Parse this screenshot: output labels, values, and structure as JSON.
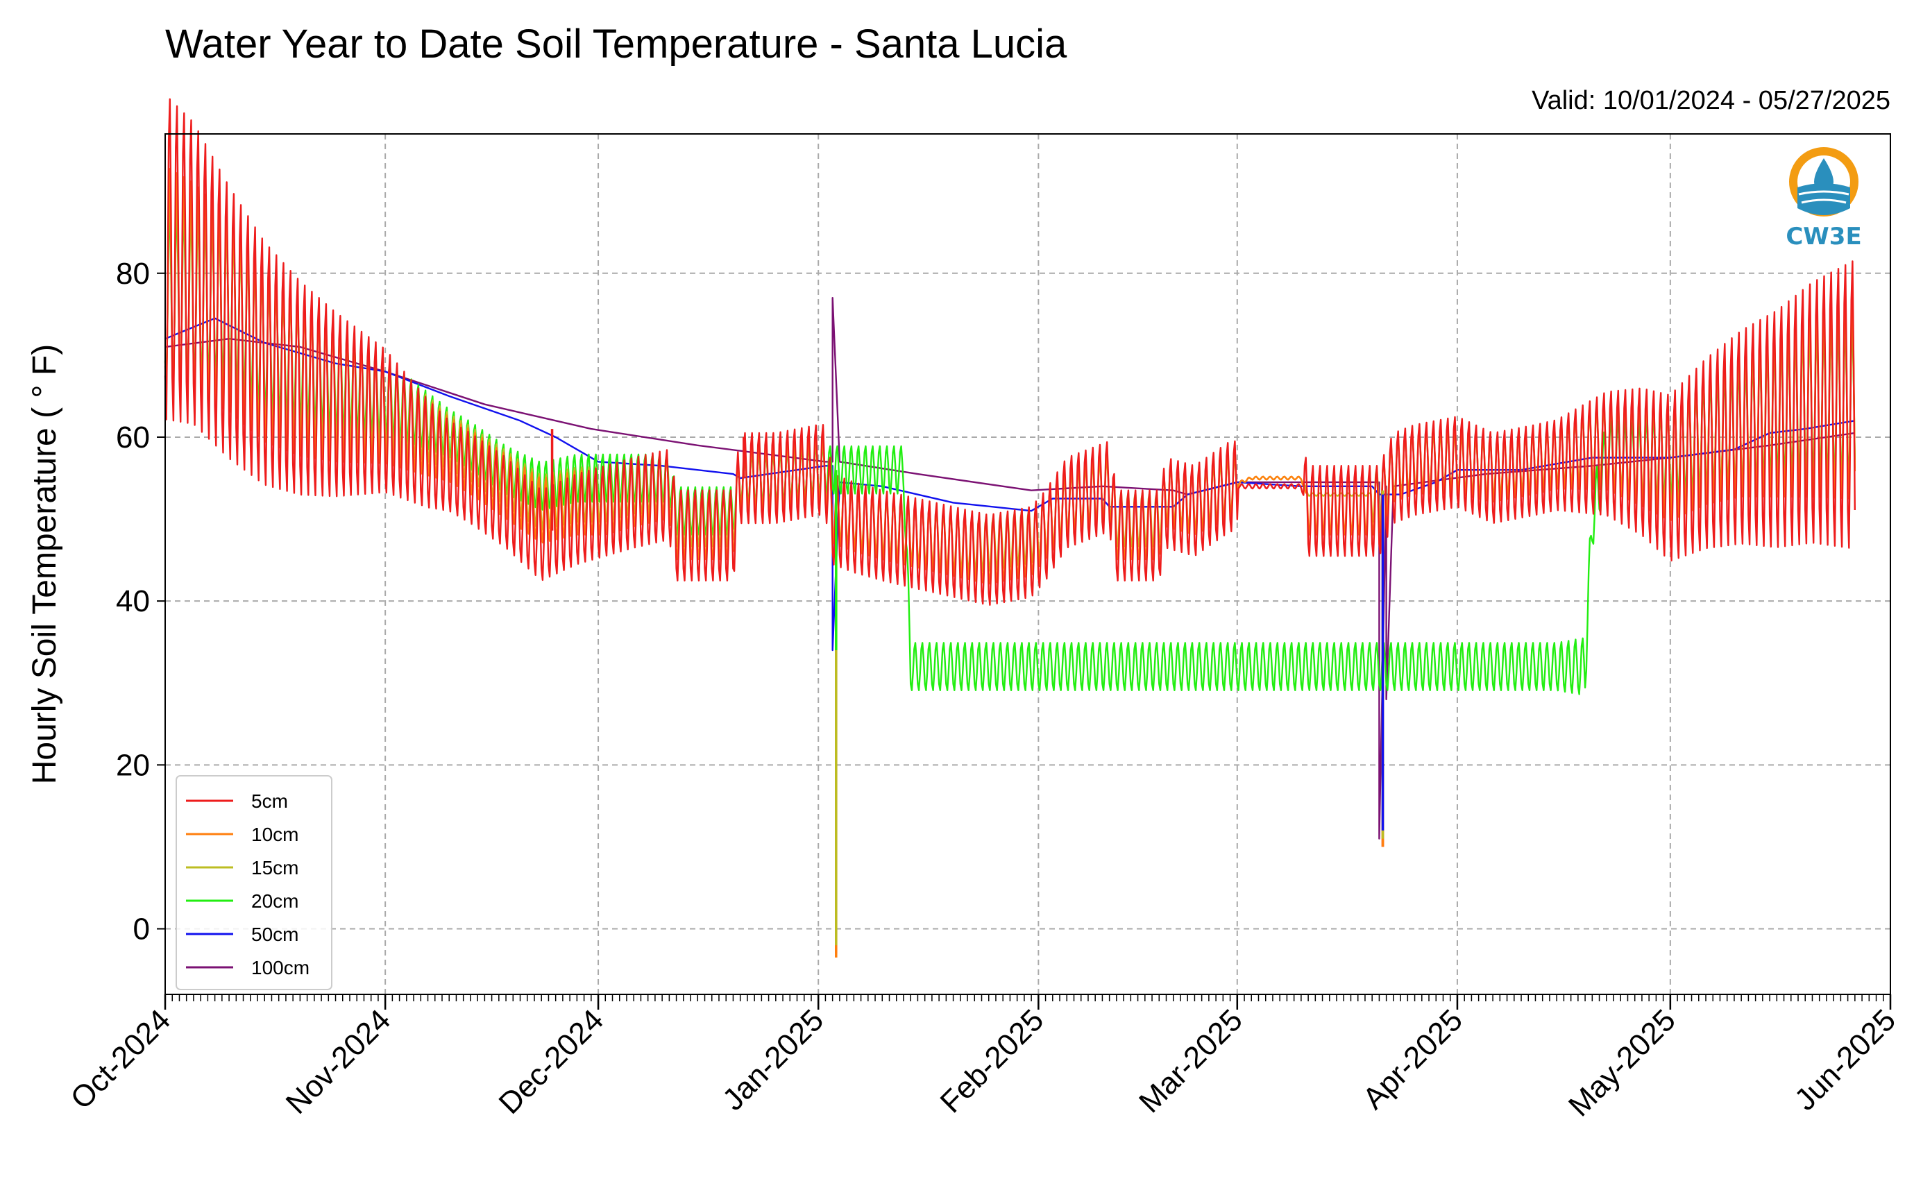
{
  "chart_data": {
    "type": "line",
    "title": "Water Year to Date Soil Temperature - Santa Lucia",
    "subtitle": "Valid: 10/01/2024 - 05/27/2025",
    "ylabel": "Hourly Soil Temperature ( ° F)",
    "xlabel": "",
    "x_range": [
      "2024-10-01",
      "2025-06-01"
    ],
    "ylim": [
      -8,
      97
    ],
    "y_ticks": [
      0,
      20,
      40,
      60,
      80
    ],
    "x_ticks": [
      {
        "date": "2024-10-01",
        "label": "Oct-2024"
      },
      {
        "date": "2024-11-01",
        "label": "Nov-2024"
      },
      {
        "date": "2024-12-01",
        "label": "Dec-2024"
      },
      {
        "date": "2025-01-01",
        "label": "Jan-2025"
      },
      {
        "date": "2025-02-01",
        "label": "Feb-2025"
      },
      {
        "date": "2025-03-01",
        "label": "Mar-2025"
      },
      {
        "date": "2025-04-01",
        "label": "Apr-2025"
      },
      {
        "date": "2025-05-01",
        "label": "May-2025"
      },
      {
        "date": "2025-06-01",
        "label": "Jun-2025"
      }
    ],
    "grid": true,
    "legend_position": "bottom-left",
    "series": [
      {
        "name": "5cm",
        "color": "#ee1c1c",
        "amp": 1.9,
        "dates": [
          "2024-10-01",
          "2024-10-05",
          "2024-10-10",
          "2024-10-15",
          "2024-10-20",
          "2024-10-25",
          "2024-11-01",
          "2024-11-07",
          "2024-11-13",
          "2024-11-18",
          "2024-11-23",
          "2024-11-28",
          "2024-12-02",
          "2024-12-06",
          "2024-12-11",
          "2024-12-12",
          "2024-12-20",
          "2024-12-21",
          "2024-12-26",
          "2025-01-01",
          "2025-01-02",
          "2025-01-03",
          "2025-01-06",
          "2025-01-10",
          "2025-01-15",
          "2025-01-20",
          "2025-01-25",
          "2025-01-31",
          "2025-02-02",
          "2025-02-05",
          "2025-02-11",
          "2025-02-12",
          "2025-02-13",
          "2025-02-18",
          "2025-02-19",
          "2025-02-23",
          "2025-02-28",
          "2025-03-03",
          "2025-03-10",
          "2025-03-11",
          "2025-03-20",
          "2025-03-21",
          "2025-03-22",
          "2025-03-23",
          "2025-03-26",
          "2025-04-01",
          "2025-04-06",
          "2025-04-12",
          "2025-04-17",
          "2025-04-22",
          "2025-04-27",
          "2025-05-01",
          "2025-05-06",
          "2025-05-11",
          "2025-05-16",
          "2025-05-21",
          "2025-05-27"
        ],
        "values": [
          82,
          80,
          74,
          69,
          66,
          64,
          62,
          58,
          55,
          52,
          48,
          50,
          51,
          52,
          53,
          48,
          48,
          55,
          55,
          56,
          56,
          50,
          49,
          48,
          47,
          46,
          45,
          46,
          48,
          52,
          54,
          48,
          48,
          48,
          52,
          51,
          54,
          54,
          54,
          51,
          51,
          51,
          53,
          55,
          56,
          57,
          55,
          56,
          57,
          58,
          57,
          55,
          58,
          60,
          61,
          63,
          64
        ]
      },
      {
        "name": "10cm",
        "color": "#ff7f0e",
        "amp": 1.35,
        "dates": [
          "2024-10-01",
          "2024-10-05",
          "2024-10-10",
          "2024-10-15",
          "2024-10-20",
          "2024-10-25",
          "2024-11-01",
          "2024-11-07",
          "2024-11-13",
          "2024-11-18",
          "2024-11-23",
          "2024-11-28",
          "2024-12-02",
          "2024-12-06",
          "2024-12-11",
          "2024-12-12",
          "2024-12-20",
          "2024-12-21",
          "2024-12-26",
          "2025-01-01",
          "2025-01-02",
          "2025-01-03",
          "2025-01-06",
          "2025-01-10",
          "2025-01-15",
          "2025-01-20",
          "2025-01-25",
          "2025-01-31",
          "2025-02-02",
          "2025-02-05",
          "2025-02-11",
          "2025-02-12",
          "2025-02-13",
          "2025-02-18",
          "2025-02-19",
          "2025-02-23",
          "2025-02-28",
          "2025-03-03",
          "2025-03-10",
          "2025-03-11",
          "2025-03-20",
          "2025-03-21",
          "2025-03-22",
          "2025-03-23",
          "2025-03-26",
          "2025-04-01",
          "2025-04-06",
          "2025-04-12",
          "2025-04-17",
          "2025-04-22",
          "2025-04-27",
          "2025-05-01",
          "2025-05-06",
          "2025-05-11",
          "2025-05-16",
          "2025-05-21",
          "2025-05-27"
        ],
        "values": [
          79,
          78,
          75,
          70,
          67,
          65,
          63,
          60,
          57,
          54,
          51,
          52,
          52,
          53,
          54,
          49,
          49,
          55,
          55,
          56,
          56,
          51,
          50,
          49,
          48,
          47,
          46,
          47,
          49,
          52,
          54,
          49,
          49,
          49,
          53,
          52,
          54,
          55,
          55,
          52,
          52,
          52,
          54,
          56,
          57,
          57,
          56,
          57,
          58,
          59,
          58,
          57,
          60,
          62,
          63,
          64,
          65
        ]
      },
      {
        "name": "15cm",
        "color": "#bcbd22",
        "amp": 1.15,
        "dates": [
          "2024-10-01",
          "2024-10-05",
          "2024-10-10",
          "2024-10-15",
          "2024-10-20",
          "2024-10-25",
          "2024-11-01",
          "2024-11-07",
          "2024-11-13",
          "2024-11-18",
          "2024-11-23",
          "2024-11-28",
          "2024-12-02",
          "2024-12-06",
          "2024-12-11",
          "2024-12-12",
          "2024-12-20",
          "2024-12-21",
          "2024-12-26",
          "2025-01-01",
          "2025-01-02",
          "2025-01-03",
          "2025-01-06",
          "2025-01-10",
          "2025-01-15",
          "2025-01-20",
          "2025-01-25",
          "2025-01-31",
          "2025-02-02",
          "2025-02-05",
          "2025-02-11",
          "2025-02-12",
          "2025-02-13",
          "2025-02-18",
          "2025-02-19",
          "2025-02-23",
          "2025-02-28",
          "2025-03-03",
          "2025-03-10",
          "2025-03-11",
          "2025-03-20",
          "2025-03-21",
          "2025-03-22",
          "2025-03-23",
          "2025-03-26",
          "2025-04-01",
          "2025-04-06",
          "2025-04-12",
          "2025-04-17",
          "2025-04-22",
          "2025-04-27",
          "2025-05-01",
          "2025-05-06",
          "2025-05-11",
          "2025-05-16",
          "2025-05-21",
          "2025-05-27"
        ],
        "values": [
          78,
          77,
          75,
          70,
          68,
          66,
          64,
          61,
          58,
          55,
          52,
          53,
          53,
          54,
          54,
          50,
          50,
          55,
          55,
          56,
          56,
          51,
          50,
          49,
          48,
          47,
          47,
          48,
          49,
          52,
          54,
          50,
          50,
          50,
          53,
          52,
          54,
          55,
          55,
          53,
          53,
          53,
          54,
          56,
          57,
          57,
          56,
          57,
          58,
          59,
          58,
          57,
          60,
          61,
          62,
          63,
          64
        ]
      },
      {
        "name": "20cm",
        "color": "#22ee11",
        "amp": 1.0,
        "dates": [
          "2024-10-01",
          "2024-10-05",
          "2024-10-10",
          "2024-10-15",
          "2024-10-20",
          "2024-10-25",
          "2024-11-01",
          "2024-11-07",
          "2024-11-13",
          "2024-11-18",
          "2024-11-23",
          "2024-11-28",
          "2024-12-02",
          "2024-12-06",
          "2024-12-11",
          "2024-12-12",
          "2024-12-20",
          "2024-12-21",
          "2024-12-26",
          "2025-01-01",
          "2025-01-13",
          "2025-01-14",
          "2025-04-19",
          "2025-04-20",
          "2025-04-22",
          "2025-04-27",
          "2025-05-01",
          "2025-05-06",
          "2025-05-11",
          "2025-05-16",
          "2025-05-21",
          "2025-05-27"
        ],
        "values": [
          77,
          77,
          76,
          71,
          69,
          67,
          65,
          62,
          59,
          56,
          54,
          55,
          55,
          55,
          55,
          51,
          51,
          55,
          55,
          56,
          56,
          32,
          32,
          50,
          58,
          57,
          58,
          60,
          61,
          63,
          64,
          64
        ]
      },
      {
        "name": "50cm",
        "color": "#1111ee",
        "amp": 0,
        "dates": [
          "2024-10-01",
          "2024-10-08",
          "2024-10-15",
          "2024-10-25",
          "2024-11-01",
          "2024-11-10",
          "2024-11-20",
          "2024-11-25",
          "2024-12-01",
          "2024-12-10",
          "2024-12-20",
          "2024-12-21",
          "2024-12-25",
          "2025-01-02",
          "2025-01-03",
          "2025-01-03",
          "2025-01-04",
          "2025-01-10",
          "2025-01-20",
          "2025-01-31",
          "2025-02-03",
          "2025-02-10",
          "2025-02-11",
          "2025-02-20",
          "2025-02-22",
          "2025-03-01",
          "2025-03-10",
          "2025-03-20",
          "2025-03-21",
          "2025-03-24",
          "2025-03-29",
          "2025-04-01",
          "2025-04-10",
          "2025-04-20",
          "2025-05-01",
          "2025-05-10",
          "2025-05-15",
          "2025-05-20",
          "2025-05-27"
        ],
        "values": [
          72,
          74.5,
          71.5,
          69,
          68,
          65,
          62,
          60,
          57,
          56.5,
          55.5,
          55,
          55.5,
          56.5,
          56.5,
          34,
          54.5,
          54,
          52,
          51,
          52.5,
          52.5,
          51.5,
          51.5,
          53,
          54.5,
          54,
          54,
          53,
          53,
          54.5,
          56,
          56,
          57.5,
          57.5,
          58.5,
          60.5,
          61,
          62
        ]
      },
      {
        "name": "100cm",
        "color": "#7b1173",
        "amp": 0,
        "dates": [
          "2024-10-01",
          "2024-10-10",
          "2024-10-20",
          "2024-11-01",
          "2024-11-15",
          "2024-11-30",
          "2024-12-15",
          "2025-01-02",
          "2025-01-03",
          "2025-01-03",
          "2025-01-04",
          "2025-01-15",
          "2025-01-31",
          "2025-02-10",
          "2025-02-20",
          "2025-02-22",
          "2025-03-01",
          "2025-03-10",
          "2025-03-20",
          "2025-03-21",
          "2025-03-21",
          "2025-03-22",
          "2025-03-22",
          "2025-03-23",
          "2025-04-05",
          "2025-04-20",
          "2025-05-01",
          "2025-05-15",
          "2025-05-27"
        ],
        "values": [
          71,
          72,
          71,
          68,
          64,
          61,
          59,
          57,
          57,
          77,
          57,
          55.5,
          53.5,
          54,
          53.5,
          53,
          54.5,
          54.5,
          54.5,
          54.5,
          11,
          54,
          28,
          54,
          55.5,
          56.5,
          57.5,
          59,
          60.5
        ]
      }
    ],
    "spikes": [
      {
        "series": "5cm",
        "date": "2025-01-03",
        "value": -3
      },
      {
        "series": "10cm",
        "date": "2025-01-03",
        "value": -3.5
      },
      {
        "series": "15cm",
        "date": "2025-01-03",
        "value": -2
      },
      {
        "series": "20cm",
        "date": "2025-01-03",
        "value": 34
      },
      {
        "series": "5cm",
        "date": "2025-03-21",
        "value": 10
      },
      {
        "series": "10cm",
        "date": "2025-03-21",
        "value": 10
      },
      {
        "series": "15cm",
        "date": "2025-03-21",
        "value": 11
      },
      {
        "series": "50cm",
        "date": "2025-03-21",
        "value": 12
      },
      {
        "series": "5cm",
        "date": "2024-11-24",
        "value": 61
      },
      {
        "series": "5cm",
        "date": "2024-12-21",
        "value": 60
      }
    ]
  },
  "logo": {
    "text": "CW3E",
    "color": "#2a8fbd",
    "accent": "#f39c12",
    "icon": "water-drop-logo-icon"
  }
}
